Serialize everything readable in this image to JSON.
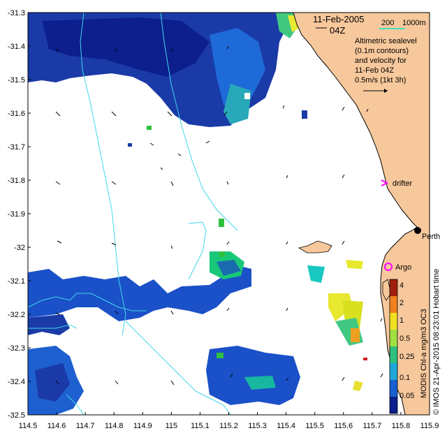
{
  "map": {
    "date_title": "11-Feb-2005",
    "time_title": "04Z",
    "depth_legend": {
      "left": "200",
      "right": "1000m"
    },
    "legend_lines": [
      "Altimetric sealevel",
      "(0.1m contours)",
      "and velocity for",
      "11-Feb 04Z",
      "0.5m/s (1kt 3h)"
    ],
    "place_labels": {
      "perth": "Perth",
      "drifter": "drifter",
      "argo": "Argo"
    },
    "attribution": "© IMOS 21-Apr-2015 08:23:01 Hobart time",
    "colorbar_title": "MODIS Chl-a mg/m3 OC3",
    "colorbar_ticks": [
      "4",
      "2",
      "1",
      "0.5",
      "0.25",
      "0.1",
      "0.05"
    ],
    "x_ticks": [
      "114.5",
      "114.6",
      "114.7",
      "114.8",
      "114.9",
      "115",
      "115.1",
      "115.2",
      "115.3",
      "115.4",
      "115.5",
      "115.6",
      "115.7",
      "115.8",
      "115.9"
    ],
    "y_ticks": [
      "-31.3",
      "-31.4",
      "-31.5",
      "-31.6",
      "-31.7",
      "-31.8",
      "-31.9",
      "-32",
      "-32.1",
      "-32.2",
      "-32.3",
      "-32.4",
      "-32.5"
    ],
    "colors": {
      "land": "#f7c89c",
      "coast_shelf": "#40e0e8",
      "chl_low": "#0a1f9a",
      "chl_mid": "#1e64d8",
      "chl_high": "#18c878",
      "chl_vhigh": "#f0f030",
      "drifter": "#ff00ff",
      "argo": "#ff00ff"
    }
  }
}
